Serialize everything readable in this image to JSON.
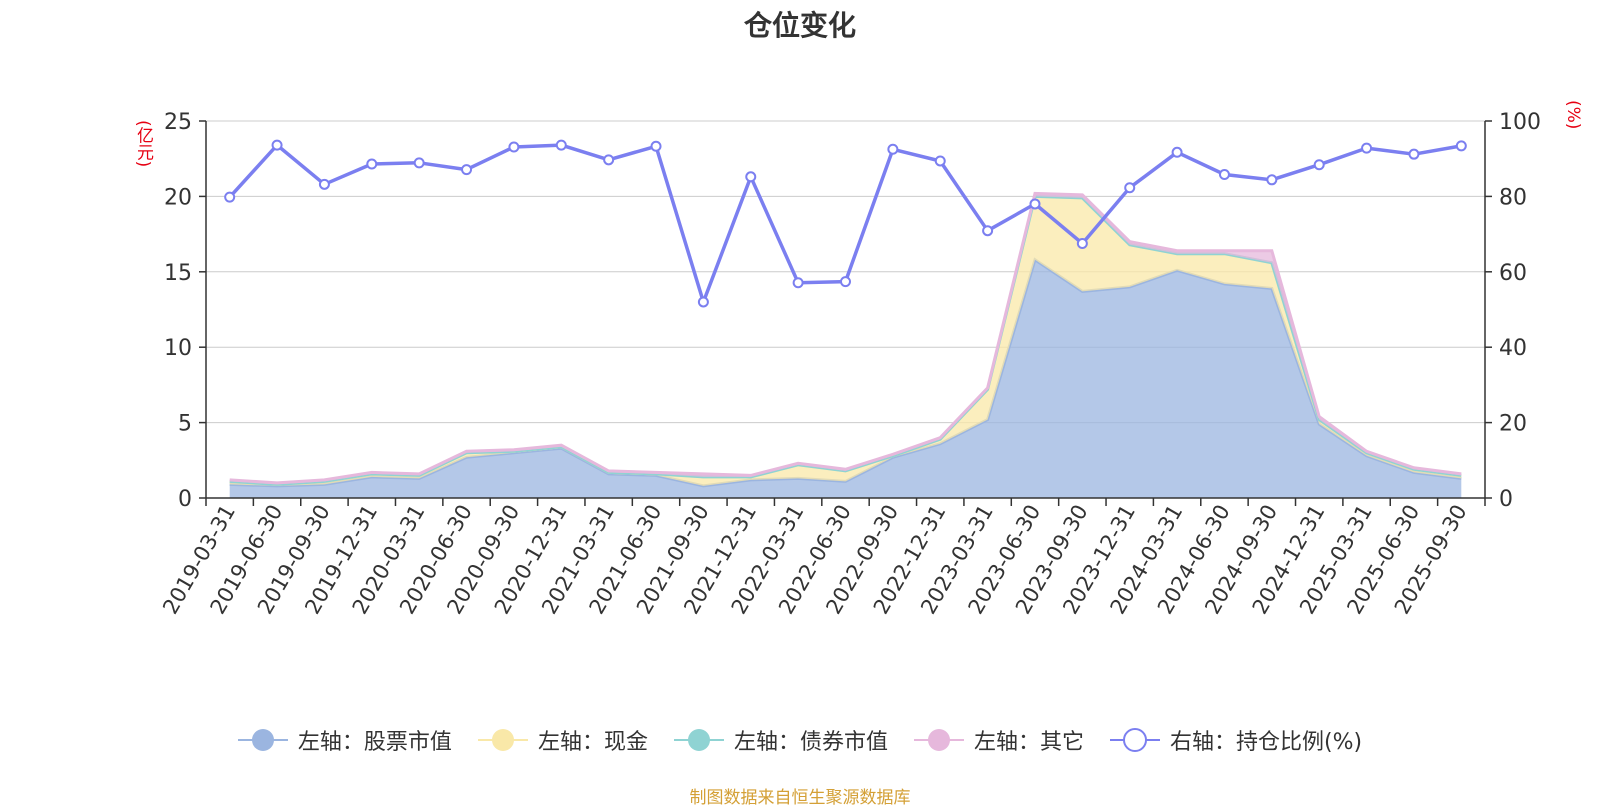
{
  "title": "仓位变化",
  "source_note": "制图数据来自恒生聚源数据库",
  "chart_data": {
    "type": "area",
    "title": "仓位变化",
    "categories": [
      "2019-03-31",
      "2019-06-30",
      "2019-09-30",
      "2019-12-31",
      "2020-03-31",
      "2020-06-30",
      "2020-09-30",
      "2020-12-31",
      "2021-03-31",
      "2021-06-30",
      "2021-09-30",
      "2021-12-31",
      "2022-03-31",
      "2022-06-30",
      "2022-09-30",
      "2022-12-31",
      "2023-03-31",
      "2023-06-30",
      "2023-09-30",
      "2023-12-31",
      "2024-03-31",
      "2024-06-30",
      "2024-09-30",
      "2024-12-31",
      "2025-03-31",
      "2025-06-30",
      "2025-09-30"
    ],
    "left_axis": {
      "label": "(亿元)",
      "ylim": [
        0,
        25
      ],
      "ticks": [
        0,
        5,
        10,
        15,
        20,
        25
      ]
    },
    "right_axis": {
      "label": "(%)",
      "ylim": [
        0,
        100
      ],
      "ticks": [
        0,
        20,
        40,
        60,
        80,
        100
      ]
    },
    "stacked": true,
    "series": [
      {
        "name": "左轴：股票市值",
        "axis": "left",
        "type": "area",
        "color": "#9bb5e0",
        "values": [
          0.9,
          0.8,
          0.9,
          1.4,
          1.3,
          2.7,
          3.0,
          3.3,
          1.6,
          1.5,
          0.8,
          1.2,
          1.3,
          1.1,
          2.7,
          3.6,
          5.2,
          15.8,
          13.7,
          14.0,
          15.1,
          14.2,
          13.9,
          4.9,
          2.8,
          1.7,
          1.3
        ]
      },
      {
        "name": "左轴：现金",
        "axis": "left",
        "type": "area",
        "color": "#f9e8a8",
        "values": [
          0.2,
          0.1,
          0.2,
          0.2,
          0.2,
          0.3,
          0.1,
          0.1,
          0.1,
          0.1,
          0.6,
          0.2,
          0.9,
          0.7,
          0.1,
          0.3,
          2.0,
          4.2,
          6.2,
          2.8,
          1.1,
          2.0,
          1.7,
          0.3,
          0.2,
          0.2,
          0.2
        ]
      },
      {
        "name": "左轴：债券市值",
        "axis": "left",
        "type": "area",
        "color": "#8fd3d3",
        "values": [
          0,
          0,
          0,
          0,
          0,
          0,
          0,
          0,
          0,
          0,
          0,
          0,
          0,
          0,
          0,
          0,
          0,
          0,
          0,
          0,
          0,
          0,
          0,
          0,
          0,
          0,
          0
        ]
      },
      {
        "name": "左轴：其它",
        "axis": "left",
        "type": "area",
        "color": "#e6b8dc",
        "values": [
          0.1,
          0.1,
          0.1,
          0.1,
          0.1,
          0.1,
          0.1,
          0.1,
          0.1,
          0.1,
          0.2,
          0.1,
          0.1,
          0.1,
          0.1,
          0.1,
          0.1,
          0.2,
          0.2,
          0.2,
          0.2,
          0.2,
          0.8,
          0.2,
          0.1,
          0.1,
          0.1
        ]
      },
      {
        "name": "右轴：持仓比例(%)",
        "axis": "right",
        "type": "line",
        "color": "#7b7ff0",
        "values": [
          79.8,
          93.6,
          83.2,
          88.6,
          88.9,
          87.1,
          93.1,
          93.6,
          89.7,
          93.3,
          52.0,
          85.2,
          57.1,
          57.4,
          92.5,
          89.4,
          70.9,
          78.0,
          67.5,
          82.3,
          91.7,
          85.8,
          84.4,
          88.4,
          92.8,
          91.2,
          93.4
        ]
      }
    ],
    "legend_position": "bottom",
    "grid": true
  }
}
